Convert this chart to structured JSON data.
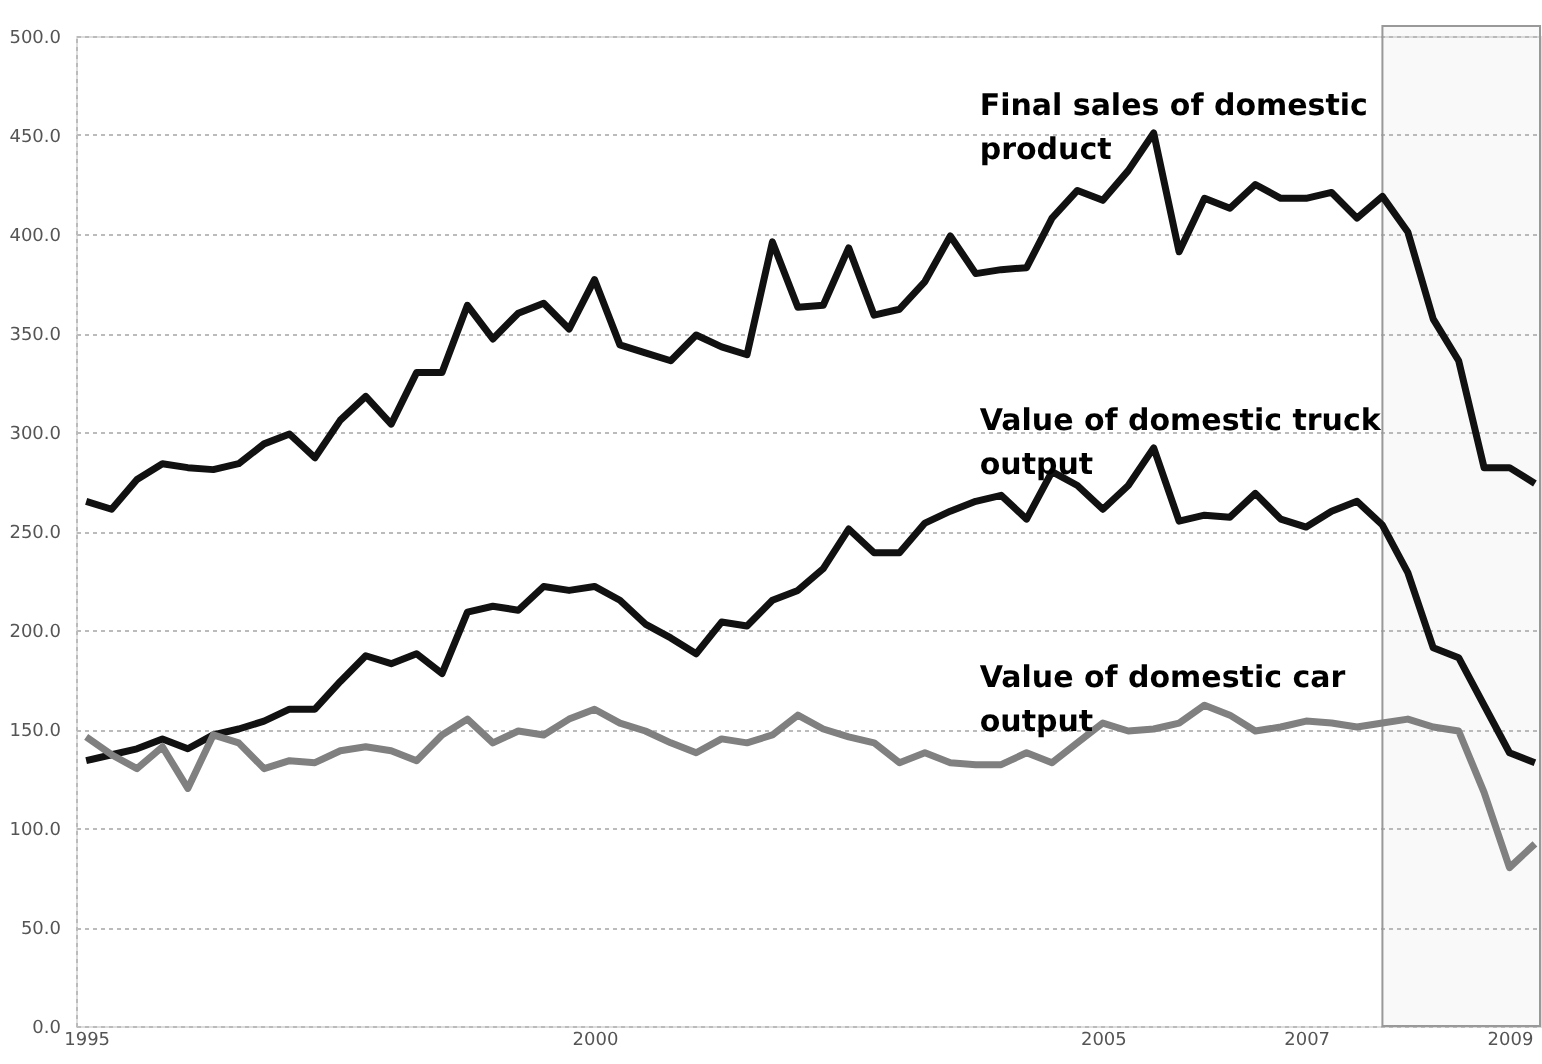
{
  "chart_data": {
    "type": "line",
    "x": [
      1995,
      1995.25,
      1995.5,
      1995.75,
      1996,
      1996.25,
      1996.5,
      1996.75,
      1997,
      1997.25,
      1997.5,
      1997.75,
      1998,
      1998.25,
      1998.5,
      1998.75,
      1999,
      1999.25,
      1999.5,
      1999.75,
      2000,
      2000.25,
      2000.5,
      2000.75,
      2001,
      2001.25,
      2001.5,
      2001.75,
      2002,
      2002.25,
      2002.5,
      2002.75,
      2003,
      2003.25,
      2003.5,
      2003.75,
      2004,
      2004.25,
      2004.5,
      2004.75,
      2005,
      2005.25,
      2005.5,
      2005.75,
      2006,
      2006.25,
      2006.5,
      2006.75,
      2007,
      2007.25,
      2007.5,
      2007.75,
      2008,
      2008.25,
      2008.5,
      2008.75,
      2009,
      2009.25
    ],
    "series": [
      {
        "name": "Final sales of domestic product",
        "color": "#111111",
        "values": [
          265,
          261,
          276,
          284,
          282,
          281,
          284,
          294,
          299,
          287,
          306,
          318,
          304,
          330,
          330,
          364,
          347,
          360,
          365,
          352,
          377,
          344,
          340,
          336,
          349,
          343,
          339,
          396,
          363,
          364,
          393,
          359,
          362,
          376,
          399,
          380,
          382,
          383,
          408,
          422,
          417,
          432,
          451,
          391,
          418,
          413,
          425,
          418,
          418,
          421,
          408,
          419,
          401,
          357,
          336,
          282,
          282,
          274
        ]
      },
      {
        "name": "Value of domestic truck output",
        "color": "#111111",
        "values": [
          134,
          137,
          140,
          145,
          140,
          147,
          150,
          154,
          160,
          160,
          174,
          187,
          183,
          188,
          178,
          209,
          212,
          210,
          222,
          220,
          222,
          215,
          203,
          196,
          188,
          204,
          202,
          215,
          220,
          231,
          251,
          239,
          239,
          254,
          260,
          265,
          268,
          256,
          280,
          273,
          261,
          273,
          292,
          255,
          258,
          257,
          269,
          256,
          252,
          260,
          265,
          253,
          229,
          191,
          186,
          162,
          138,
          133
        ]
      },
      {
        "name": "Value of domestic car output",
        "color": "#808080",
        "values": [
          146,
          137,
          130,
          141,
          120,
          147,
          143,
          130,
          134,
          133,
          139,
          141,
          139,
          134,
          147,
          155,
          143,
          149,
          147,
          155,
          160,
          153,
          149,
          143,
          138,
          145,
          143,
          147,
          157,
          150,
          146,
          143,
          133,
          138,
          133,
          132,
          132,
          138,
          133,
          143,
          153,
          149,
          150,
          153,
          162,
          157,
          149,
          151,
          154,
          153,
          151,
          153,
          155,
          151,
          149,
          118,
          80,
          92
        ]
      }
    ],
    "xlim": [
      1994.9,
      2009.3
    ],
    "xticks": [
      1995,
      2000,
      2005,
      2007,
      2009
    ],
    "ylim": [
      0,
      500
    ],
    "yticks": [
      {
        "value": 0,
        "label": "0.0"
      },
      {
        "value": 50,
        "label": "50.0"
      },
      {
        "value": 100,
        "label": "100.0"
      },
      {
        "value": 150,
        "label": "150.0"
      },
      {
        "value": 200,
        "label": "200.0"
      },
      {
        "value": 250,
        "label": "250.0"
      },
      {
        "value": 300,
        "label": "300.0"
      },
      {
        "value": 350,
        "label": "350.0"
      },
      {
        "value": 400,
        "label": "400.0"
      },
      {
        "value": 450,
        "label": "450.0"
      },
      {
        "value": 500,
        "label": "500.0"
      }
    ],
    "bands": [
      {
        "axis": "x",
        "from": 2007.75,
        "to": 2009.3,
        "color": "#999999"
      }
    ],
    "grid": "y",
    "marker": "none",
    "line_style": "solid"
  }
}
